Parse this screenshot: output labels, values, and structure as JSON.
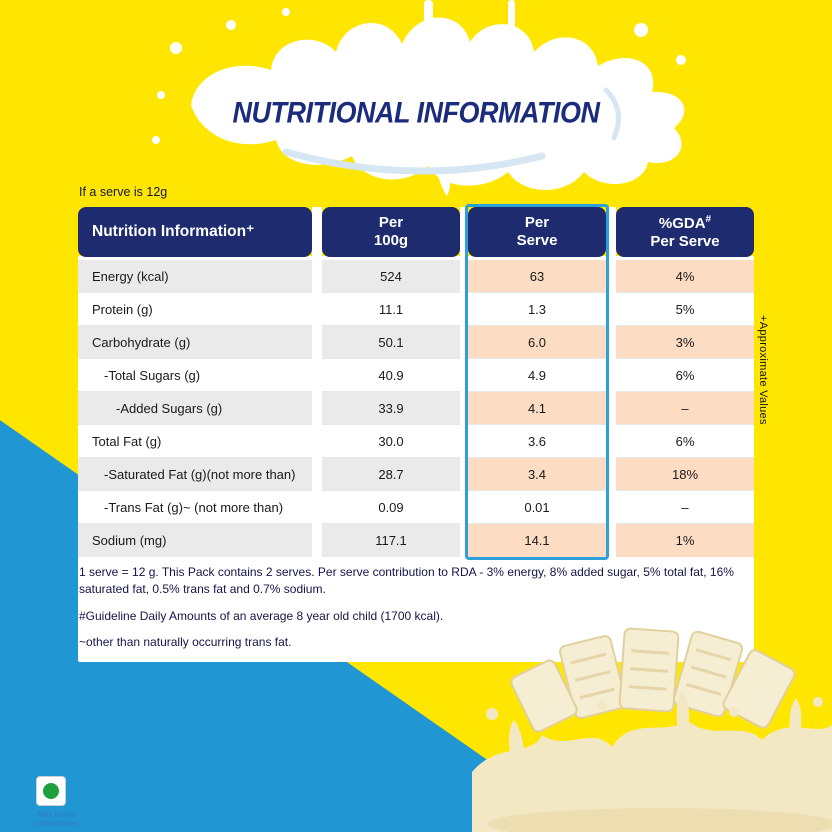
{
  "page": {
    "title": "NUTRITIONAL INFORMATION",
    "serve_note": "If a serve is 12g",
    "approx_note": "+Approximate Values",
    "veg_label": "Milk based confectionery"
  },
  "table": {
    "header": {
      "col1": "Nutrition Information⁺",
      "col2_line1": "Per",
      "col2_line2": "100g",
      "col3_line1": "Per",
      "col3_line2": "Serve",
      "col4_line1": "%GDA",
      "col4_sup": "#",
      "col4_line2": "Per Serve"
    },
    "rows": [
      {
        "label": "Energy (kcal)",
        "indent": 0,
        "per100g": "524",
        "per_serve": "63",
        "gda": "4%"
      },
      {
        "label": "Protein (g)",
        "indent": 0,
        "per100g": "11.1",
        "per_serve": "1.3",
        "gda": "5%"
      },
      {
        "label": "Carbohydrate (g)",
        "indent": 0,
        "per100g": "50.1",
        "per_serve": "6.0",
        "gda": "3%"
      },
      {
        "label": "-Total Sugars (g)",
        "indent": 1,
        "per100g": "40.9",
        "per_serve": "4.9",
        "gda": "6%"
      },
      {
        "label": "-Added Sugars (g)",
        "indent": 2,
        "per100g": "33.9",
        "per_serve": "4.1",
        "gda": "–"
      },
      {
        "label": "Total Fat (g)",
        "indent": 0,
        "per100g": "30.0",
        "per_serve": "3.6",
        "gda": "6%"
      },
      {
        "label": "-Saturated Fat (g)(not more than)",
        "indent": 1,
        "per100g": "28.7",
        "per_serve": "3.4",
        "gda": "18%"
      },
      {
        "label": "-Trans Fat (g)~ (not more than)",
        "indent": 1,
        "per100g": "0.09",
        "per_serve": "0.01",
        "gda": "–"
      },
      {
        "label": "Sodium (mg)",
        "indent": 0,
        "per100g": "117.1",
        "per_serve": "14.1",
        "gda": "1%"
      }
    ]
  },
  "footnotes": {
    "serves": "1 serve = 12 g. This Pack contains 2 serves. Per serve contribution to RDA - 3% energy, 8% added sugar, 5% total fat, 16% saturated fat, 0.5% trans fat and 0.7% sodium.",
    "gda": "#Guideline Daily Amounts of an average 8 year old child (1700 kcal).",
    "trans_fat": "~other than naturally occurring trans fat."
  },
  "colors": {
    "yellow": "#ffe600",
    "navy": "#1e2b6e",
    "title_blue": "#1b2b7d",
    "peach": "#fcdcc2",
    "gray": "#eaeaea",
    "serve_outline_blue": "#2da0d9",
    "corner_blue": "#2097d3",
    "footnote_ink": "#14144a",
    "veg_green": "#1fa03c",
    "cream": "#f3e8c4"
  }
}
